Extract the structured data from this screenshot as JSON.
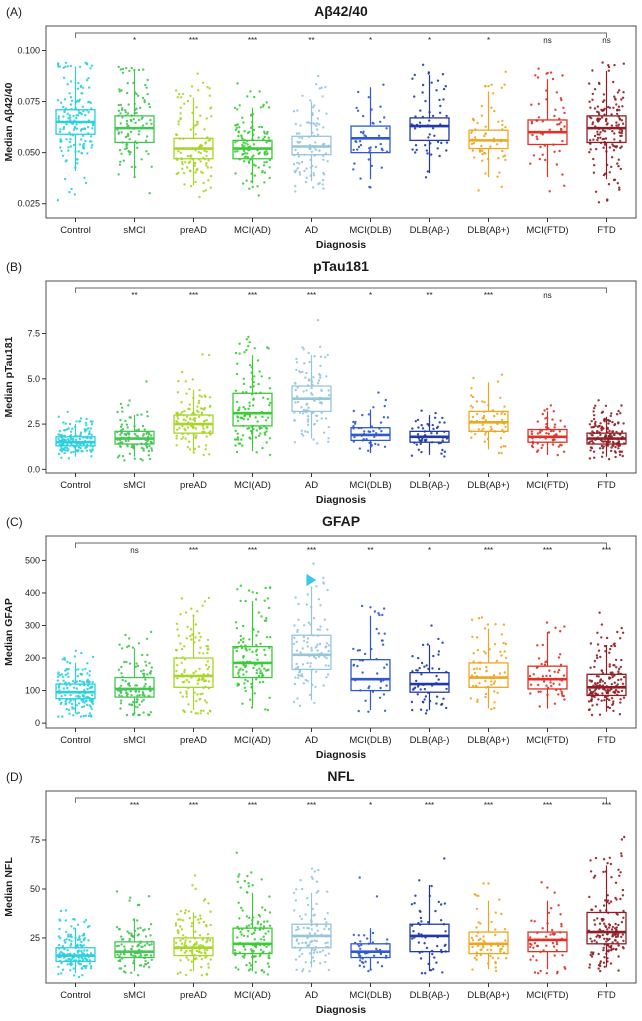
{
  "categories": [
    "Control",
    "sMCI",
    "preAD",
    "MCI(AD)",
    "AD",
    "MCI(DLB)",
    "DLB(Aβ-)",
    "DLB(Aβ+)",
    "MCI(FTD)",
    "FTD"
  ],
  "colors": [
    "#2bd0de",
    "#44c554",
    "#a8d526",
    "#3bcb37",
    "#96c6da",
    "#2e59cf",
    "#2038a8",
    "#f0a51f",
    "#e03126",
    "#8e1e24"
  ],
  "chart_data": [
    {
      "type": "boxplot",
      "panel_label": "(A)",
      "title": "Aβ42/40",
      "xlabel": "Diagnosis",
      "ylabel": "Median Aβ42/40",
      "ylim": [
        0.018,
        0.112
      ],
      "yticks": [
        0.025,
        0.05,
        0.075,
        0.1
      ],
      "ytick_labels": [
        "0.025",
        "0.050",
        "0.075",
        "0.100"
      ],
      "significance": [
        "",
        "*",
        "***",
        "***",
        "**",
        "*",
        "*",
        "*",
        "ns",
        "ns"
      ],
      "groups": [
        {
          "name": "Control",
          "median": 0.065,
          "q1": 0.059,
          "q3": 0.071,
          "whisker_lo": 0.041,
          "whisker_hi": 0.092,
          "pt_min": 0.021,
          "pt_max": 0.094,
          "n": 150
        },
        {
          "name": "sMCI",
          "median": 0.062,
          "q1": 0.055,
          "q3": 0.068,
          "whisker_lo": 0.038,
          "whisker_hi": 0.09,
          "pt_min": 0.027,
          "pt_max": 0.092,
          "n": 110
        },
        {
          "name": "preAD",
          "median": 0.052,
          "q1": 0.047,
          "q3": 0.057,
          "whisker_lo": 0.034,
          "whisker_hi": 0.077,
          "pt_min": 0.028,
          "pt_max": 0.091,
          "n": 110
        },
        {
          "name": "MCI(AD)",
          "median": 0.052,
          "q1": 0.047,
          "q3": 0.056,
          "whisker_lo": 0.035,
          "whisker_hi": 0.072,
          "pt_min": 0.029,
          "pt_max": 0.09,
          "n": 120
        },
        {
          "name": "AD",
          "median": 0.053,
          "q1": 0.049,
          "q3": 0.058,
          "whisker_lo": 0.036,
          "whisker_hi": 0.075,
          "pt_min": 0.028,
          "pt_max": 0.089,
          "n": 100
        },
        {
          "name": "MCI(DLB)",
          "median": 0.057,
          "q1": 0.05,
          "q3": 0.063,
          "whisker_lo": 0.037,
          "whisker_hi": 0.082,
          "pt_min": 0.033,
          "pt_max": 0.09,
          "n": 45
        },
        {
          "name": "DLB(Aβ-)",
          "median": 0.063,
          "q1": 0.056,
          "q3": 0.067,
          "whisker_lo": 0.04,
          "whisker_hi": 0.088,
          "pt_min": 0.034,
          "pt_max": 0.093,
          "n": 55
        },
        {
          "name": "DLB(Aβ+)",
          "median": 0.056,
          "q1": 0.052,
          "q3": 0.061,
          "whisker_lo": 0.038,
          "whisker_hi": 0.08,
          "pt_min": 0.03,
          "pt_max": 0.091,
          "n": 60
        },
        {
          "name": "MCI(FTD)",
          "median": 0.06,
          "q1": 0.054,
          "q3": 0.066,
          "whisker_lo": 0.038,
          "whisker_hi": 0.086,
          "pt_min": 0.03,
          "pt_max": 0.092,
          "n": 55
        },
        {
          "name": "FTD",
          "median": 0.062,
          "q1": 0.055,
          "q3": 0.068,
          "whisker_lo": 0.037,
          "whisker_hi": 0.09,
          "pt_min": 0.022,
          "pt_max": 0.095,
          "n": 150
        }
      ]
    },
    {
      "type": "boxplot",
      "panel_label": "(B)",
      "title": "pTau181",
      "xlabel": "Diagnosis",
      "ylabel": "Median pTau181",
      "ylim": [
        -0.2,
        10.4
      ],
      "yticks": [
        0.0,
        2.5,
        5.0,
        7.5
      ],
      "ytick_labels": [
        "0.0",
        "2.5",
        "5.0",
        "7.5"
      ],
      "significance": [
        "",
        "**",
        "***",
        "***",
        "***",
        "*",
        "**",
        "***",
        "ns",
        ""
      ],
      "groups": [
        {
          "name": "Control",
          "median": 1.5,
          "q1": 1.3,
          "q3": 1.8,
          "whisker_lo": 0.7,
          "whisker_hi": 2.5,
          "pt_min": 0.5,
          "pt_max": 3.5,
          "n": 150
        },
        {
          "name": "sMCI",
          "median": 1.7,
          "q1": 1.4,
          "q3": 2.1,
          "whisker_lo": 0.7,
          "whisker_hi": 3.0,
          "pt_min": 0.5,
          "pt_max": 7.8,
          "n": 110
        },
        {
          "name": "preAD",
          "median": 2.5,
          "q1": 2.0,
          "q3": 3.0,
          "whisker_lo": 1.0,
          "whisker_hi": 4.4,
          "pt_min": 0.8,
          "pt_max": 8.3,
          "n": 110
        },
        {
          "name": "MCI(AD)",
          "median": 3.1,
          "q1": 2.4,
          "q3": 4.2,
          "whisker_lo": 1.0,
          "whisker_hi": 6.3,
          "pt_min": 0.8,
          "pt_max": 8.0,
          "n": 120
        },
        {
          "name": "AD",
          "median": 3.9,
          "q1": 3.2,
          "q3": 4.6,
          "whisker_lo": 1.7,
          "whisker_hi": 6.3,
          "pt_min": 1.2,
          "pt_max": 8.6,
          "n": 100
        },
        {
          "name": "MCI(DLB)",
          "median": 1.9,
          "q1": 1.6,
          "q3": 2.3,
          "whisker_lo": 0.9,
          "whisker_hi": 3.3,
          "pt_min": 0.8,
          "pt_max": 4.8,
          "n": 45
        },
        {
          "name": "DLB(Aβ-)",
          "median": 1.8,
          "q1": 1.5,
          "q3": 2.1,
          "whisker_lo": 0.8,
          "whisker_hi": 3.0,
          "pt_min": 0.7,
          "pt_max": 4.6,
          "n": 55
        },
        {
          "name": "DLB(Aβ+)",
          "median": 2.6,
          "q1": 2.1,
          "q3": 3.2,
          "whisker_lo": 1.1,
          "whisker_hi": 4.8,
          "pt_min": 0.9,
          "pt_max": 7.5,
          "n": 60
        },
        {
          "name": "MCI(FTD)",
          "median": 1.8,
          "q1": 1.5,
          "q3": 2.2,
          "whisker_lo": 0.8,
          "whisker_hi": 3.2,
          "pt_min": 0.6,
          "pt_max": 4.3,
          "n": 55
        },
        {
          "name": "FTD",
          "median": 1.7,
          "q1": 1.4,
          "q3": 2.0,
          "whisker_lo": 0.7,
          "whisker_hi": 2.9,
          "pt_min": 0.5,
          "pt_max": 4.4,
          "n": 150
        }
      ]
    },
    {
      "type": "boxplot",
      "panel_label": "(C)",
      "title": "GFAP",
      "xlabel": "Diagnosis",
      "ylabel": "Median GFAP",
      "ylim": [
        -15,
        575
      ],
      "yticks": [
        0,
        100,
        200,
        300,
        400,
        500
      ],
      "ytick_labels": [
        "0",
        "100",
        "200",
        "300",
        "400",
        "500"
      ],
      "significance": [
        "",
        "ns",
        "***",
        "***",
        "***",
        "**",
        "*",
        "***",
        "***",
        "***"
      ],
      "has_cursor_overlay": true,
      "groups": [
        {
          "name": "Control",
          "median": 95,
          "q1": 75,
          "q3": 120,
          "whisker_lo": 30,
          "whisker_hi": 185,
          "pt_min": 20,
          "pt_max": 290,
          "n": 150
        },
        {
          "name": "sMCI",
          "median": 105,
          "q1": 80,
          "q3": 140,
          "whisker_lo": 30,
          "whisker_hi": 230,
          "pt_min": 25,
          "pt_max": 310,
          "n": 110
        },
        {
          "name": "preAD",
          "median": 145,
          "q1": 110,
          "q3": 200,
          "whisker_lo": 40,
          "whisker_hi": 330,
          "pt_min": 30,
          "pt_max": 450,
          "n": 110
        },
        {
          "name": "MCI(AD)",
          "median": 185,
          "q1": 140,
          "q3": 235,
          "whisker_lo": 50,
          "whisker_hi": 375,
          "pt_min": 40,
          "pt_max": 430,
          "n": 120
        },
        {
          "name": "AD",
          "median": 210,
          "q1": 165,
          "q3": 270,
          "whisker_lo": 70,
          "whisker_hi": 420,
          "pt_min": 50,
          "pt_max": 490,
          "n": 100
        },
        {
          "name": "MCI(DLB)",
          "median": 135,
          "q1": 100,
          "q3": 195,
          "whisker_lo": 40,
          "whisker_hi": 330,
          "pt_min": 35,
          "pt_max": 360,
          "n": 45
        },
        {
          "name": "DLB(Aβ-)",
          "median": 120,
          "q1": 95,
          "q3": 155,
          "whisker_lo": 40,
          "whisker_hi": 240,
          "pt_min": 30,
          "pt_max": 330,
          "n": 55
        },
        {
          "name": "DLB(Aβ+)",
          "median": 140,
          "q1": 110,
          "q3": 185,
          "whisker_lo": 45,
          "whisker_hi": 290,
          "pt_min": 35,
          "pt_max": 360,
          "n": 60
        },
        {
          "name": "MCI(FTD)",
          "median": 135,
          "q1": 105,
          "q3": 175,
          "whisker_lo": 45,
          "whisker_hi": 280,
          "pt_min": 35,
          "pt_max": 340,
          "n": 55
        },
        {
          "name": "FTD",
          "median": 110,
          "q1": 85,
          "q3": 150,
          "whisker_lo": 35,
          "whisker_hi": 240,
          "pt_min": 25,
          "pt_max": 380,
          "n": 150
        }
      ]
    },
    {
      "type": "boxplot",
      "panel_label": "(D)",
      "title": "NFL",
      "xlabel": "Diagnosis",
      "ylabel": "Median NFL",
      "ylim": [
        2,
        100
      ],
      "yticks": [
        25,
        50,
        75
      ],
      "ytick_labels": [
        "25",
        "50",
        "75"
      ],
      "significance": [
        "",
        "***",
        "***",
        "***",
        "***",
        "*",
        "***",
        "***",
        "***",
        "***"
      ],
      "groups": [
        {
          "name": "Control",
          "median": 16,
          "q1": 13,
          "q3": 20,
          "whisker_lo": 7,
          "whisker_hi": 30,
          "pt_min": 5,
          "pt_max": 55,
          "n": 150
        },
        {
          "name": "sMCI",
          "median": 18,
          "q1": 15,
          "q3": 23,
          "whisker_lo": 8,
          "whisker_hi": 35,
          "pt_min": 6,
          "pt_max": 75,
          "n": 110
        },
        {
          "name": "preAD",
          "median": 20,
          "q1": 16,
          "q3": 25,
          "whisker_lo": 8,
          "whisker_hi": 38,
          "pt_min": 6,
          "pt_max": 70,
          "n": 110
        },
        {
          "name": "MCI(AD)",
          "median": 22,
          "q1": 17,
          "q3": 30,
          "whisker_lo": 8,
          "whisker_hi": 48,
          "pt_min": 6,
          "pt_max": 78,
          "n": 120
        },
        {
          "name": "AD",
          "median": 26,
          "q1": 20,
          "q3": 32,
          "whisker_lo": 10,
          "whisker_hi": 48,
          "pt_min": 8,
          "pt_max": 80,
          "n": 100
        },
        {
          "name": "MCI(DLB)",
          "median": 18,
          "q1": 15,
          "q3": 22,
          "whisker_lo": 9,
          "whisker_hi": 30,
          "pt_min": 8,
          "pt_max": 68,
          "n": 45
        },
        {
          "name": "DLB(Aβ-)",
          "median": 26,
          "q1": 18,
          "q3": 32,
          "whisker_lo": 8,
          "whisker_hi": 52,
          "pt_min": 7,
          "pt_max": 85,
          "n": 55
        },
        {
          "name": "DLB(Aβ+)",
          "median": 22,
          "q1": 17,
          "q3": 28,
          "whisker_lo": 9,
          "whisker_hi": 44,
          "pt_min": 7,
          "pt_max": 72,
          "n": 60
        },
        {
          "name": "MCI(FTD)",
          "median": 24,
          "q1": 18,
          "q3": 28,
          "whisker_lo": 9,
          "whisker_hi": 44,
          "pt_min": 7,
          "pt_max": 88,
          "n": 55
        },
        {
          "name": "FTD",
          "median": 28,
          "q1": 22,
          "q3": 38,
          "whisker_lo": 10,
          "whisker_hi": 62,
          "pt_min": 8,
          "pt_max": 88,
          "n": 150
        }
      ]
    }
  ]
}
